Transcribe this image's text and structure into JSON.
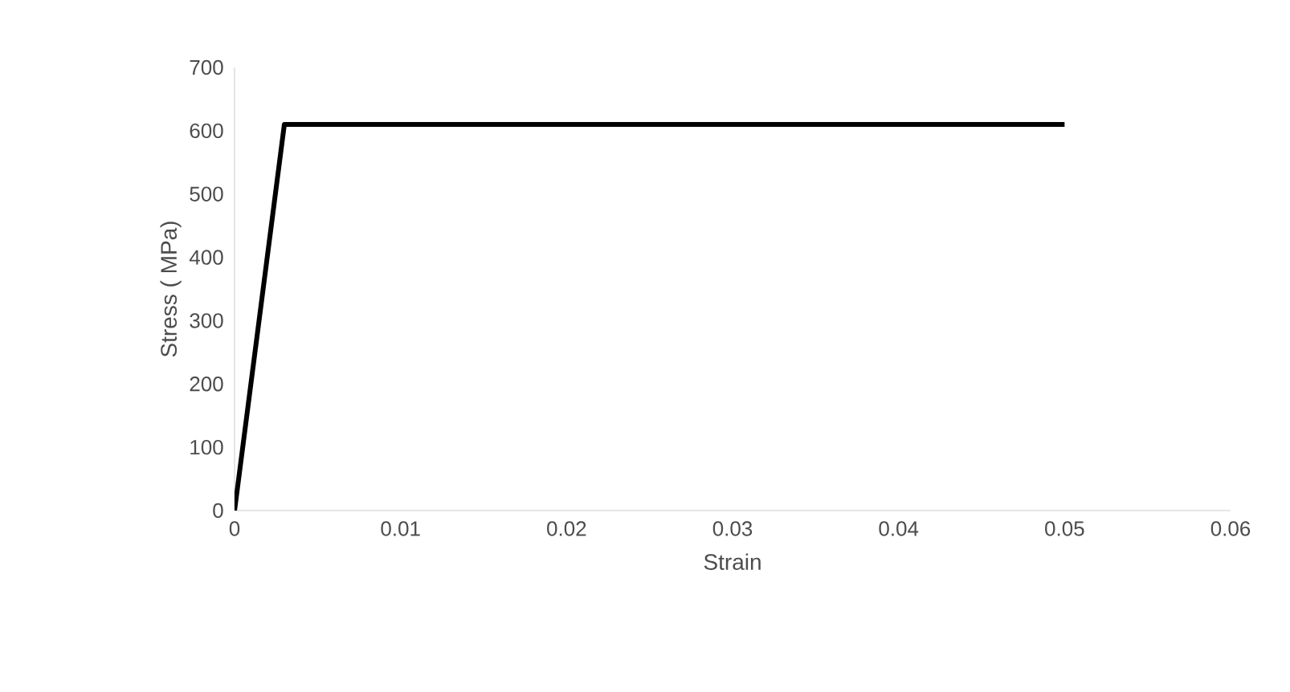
{
  "chart_data": {
    "type": "line",
    "xlabel": "Strain",
    "ylabel": "Stress ( MPa)",
    "x": [
      0,
      0.003,
      0.05
    ],
    "series": [
      {
        "color": "#000000",
        "values": [
          0,
          610,
          610
        ]
      }
    ],
    "xlim": [
      0,
      0.06
    ],
    "ylim": [
      0,
      700
    ],
    "xticks": [
      0,
      0.01,
      0.02,
      0.03,
      0.04,
      0.05,
      0.06
    ],
    "yticks": [
      0,
      100,
      200,
      300,
      400,
      500,
      600,
      700
    ]
  }
}
